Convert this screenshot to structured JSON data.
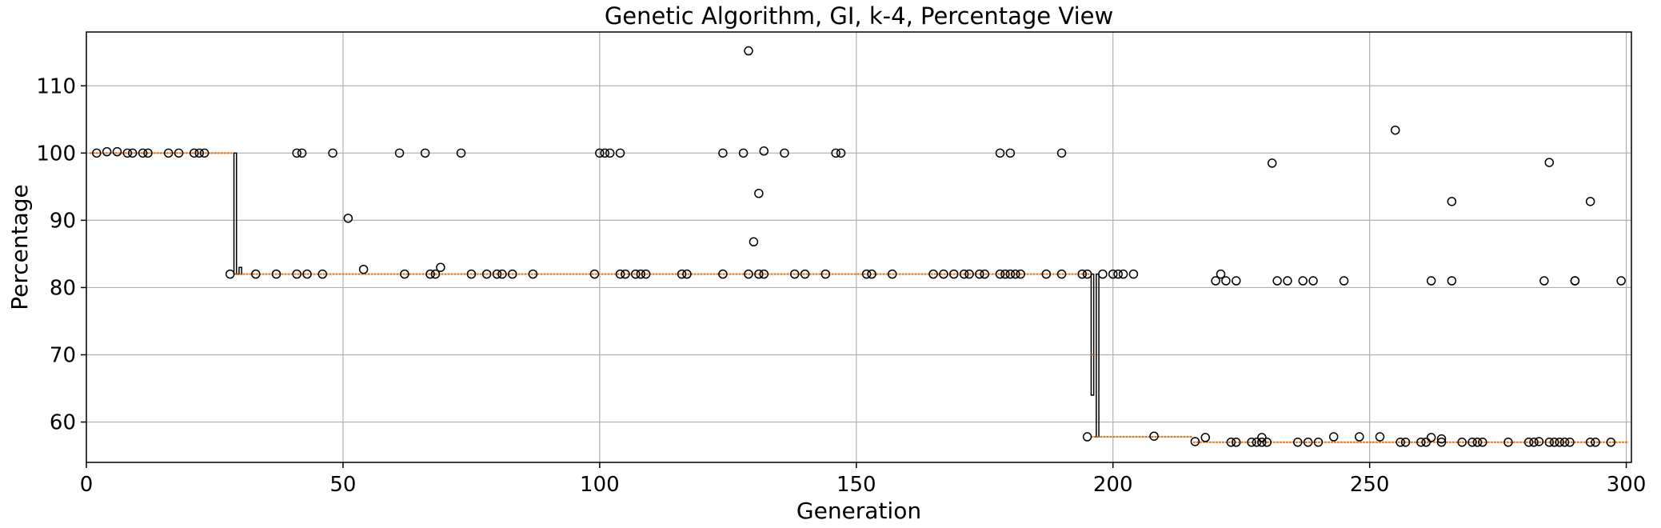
{
  "chart_data": {
    "type": "box",
    "title": "Genetic Algorithm, GI, k-4, Percentage View",
    "xlabel": "Generation",
    "ylabel": "Percentage",
    "xlim": [
      0,
      301
    ],
    "ylim": [
      54,
      118
    ],
    "xticks": [
      0,
      50,
      100,
      150,
      200,
      250,
      300
    ],
    "yticks": [
      60,
      70,
      80,
      90,
      100,
      110
    ],
    "grid": true,
    "colors": {
      "median": "#e0721b",
      "box": "#000000",
      "outlier": "#000000",
      "grid": "#b0b0b0"
    },
    "segments": [
      {
        "from": 1,
        "to": 28,
        "median": 100
      },
      {
        "from": 29,
        "to": 195,
        "median": 82
      },
      {
        "from": 196,
        "to": 215,
        "median": 57.8
      },
      {
        "from": 216,
        "to": 300,
        "median": 57
      }
    ],
    "boxes": [
      {
        "x": 29,
        "q1": 82,
        "q3": 100,
        "median": 82
      },
      {
        "x": 30,
        "q1": 82,
        "q3": 83,
        "median": 82
      },
      {
        "x": 196,
        "q1": 64,
        "q3": 82,
        "median": 70
      },
      {
        "x": 197,
        "q1": 57.8,
        "q3": 82,
        "median": 57.8
      }
    ],
    "outliers": [
      [
        2,
        100
      ],
      [
        4,
        100.2
      ],
      [
        6,
        100.2
      ],
      [
        8,
        100
      ],
      [
        9,
        100
      ],
      [
        11,
        100
      ],
      [
        12,
        100
      ],
      [
        16,
        100
      ],
      [
        18,
        100
      ],
      [
        21,
        100
      ],
      [
        22,
        100
      ],
      [
        23,
        100
      ],
      [
        28,
        82
      ],
      [
        33,
        82
      ],
      [
        37,
        82
      ],
      [
        41,
        82
      ],
      [
        41,
        100
      ],
      [
        42,
        100
      ],
      [
        43,
        82
      ],
      [
        46,
        82
      ],
      [
        48,
        100
      ],
      [
        51,
        90.3
      ],
      [
        54,
        82.7
      ],
      [
        61,
        100
      ],
      [
        62,
        82
      ],
      [
        66,
        100
      ],
      [
        67,
        82
      ],
      [
        68,
        82
      ],
      [
        69,
        83
      ],
      [
        73,
        100
      ],
      [
        75,
        82
      ],
      [
        78,
        82
      ],
      [
        80,
        82
      ],
      [
        81,
        82
      ],
      [
        83,
        82
      ],
      [
        87,
        82
      ],
      [
        99,
        82
      ],
      [
        100,
        100
      ],
      [
        101,
        100
      ],
      [
        102,
        100
      ],
      [
        104,
        100
      ],
      [
        104,
        82
      ],
      [
        105,
        82
      ],
      [
        107,
        82
      ],
      [
        108,
        82
      ],
      [
        109,
        82
      ],
      [
        116,
        82
      ],
      [
        117,
        82
      ],
      [
        124,
        82
      ],
      [
        124,
        100
      ],
      [
        128,
        100
      ],
      [
        129,
        115.2
      ],
      [
        129,
        82
      ],
      [
        130,
        86.8
      ],
      [
        131,
        94
      ],
      [
        131,
        82
      ],
      [
        132,
        100.3
      ],
      [
        132,
        82
      ],
      [
        136,
        100
      ],
      [
        138,
        82
      ],
      [
        140,
        82
      ],
      [
        144,
        82
      ],
      [
        146,
        100
      ],
      [
        147,
        100
      ],
      [
        152,
        82
      ],
      [
        153,
        82
      ],
      [
        157,
        82
      ],
      [
        165,
        82
      ],
      [
        167,
        82
      ],
      [
        169,
        82
      ],
      [
        171,
        82
      ],
      [
        172,
        82
      ],
      [
        174,
        82
      ],
      [
        175,
        82
      ],
      [
        178,
        82
      ],
      [
        178,
        100
      ],
      [
        179,
        82
      ],
      [
        180,
        82
      ],
      [
        180,
        100
      ],
      [
        181,
        82
      ],
      [
        182,
        82
      ],
      [
        187,
        82
      ],
      [
        190,
        82
      ],
      [
        190,
        100
      ],
      [
        194,
        82
      ],
      [
        195,
        82
      ],
      [
        195,
        57.8
      ],
      [
        198,
        82
      ],
      [
        200,
        82
      ],
      [
        201,
        82
      ],
      [
        202,
        82
      ],
      [
        204,
        82
      ],
      [
        208,
        57.9
      ],
      [
        216,
        57.1
      ],
      [
        218,
        57.7
      ],
      [
        220,
        81
      ],
      [
        221,
        82
      ],
      [
        222,
        81
      ],
      [
        223,
        57
      ],
      [
        224,
        57
      ],
      [
        224,
        81
      ],
      [
        227,
        57
      ],
      [
        228,
        57
      ],
      [
        229,
        57.7
      ],
      [
        229,
        57
      ],
      [
        230,
        57
      ],
      [
        231,
        98.5
      ],
      [
        232,
        81
      ],
      [
        234,
        81
      ],
      [
        236,
        57
      ],
      [
        237,
        81
      ],
      [
        238,
        57
      ],
      [
        239,
        81
      ],
      [
        240,
        57
      ],
      [
        243,
        57.8
      ],
      [
        245,
        81
      ],
      [
        248,
        57.8
      ],
      [
        252,
        57.8
      ],
      [
        255,
        103.4
      ],
      [
        256,
        57
      ],
      [
        257,
        57
      ],
      [
        260,
        57
      ],
      [
        261,
        57
      ],
      [
        262,
        57.7
      ],
      [
        262,
        81
      ],
      [
        264,
        57.5
      ],
      [
        264,
        57
      ],
      [
        266,
        92.8
      ],
      [
        266,
        81
      ],
      [
        268,
        57
      ],
      [
        270,
        57
      ],
      [
        271,
        57
      ],
      [
        272,
        57
      ],
      [
        277,
        57
      ],
      [
        281,
        57
      ],
      [
        282,
        57
      ],
      [
        283,
        57.1
      ],
      [
        284,
        81
      ],
      [
        285,
        98.6
      ],
      [
        285,
        57
      ],
      [
        286,
        57
      ],
      [
        287,
        57
      ],
      [
        288,
        57
      ],
      [
        289,
        57
      ],
      [
        290,
        81
      ],
      [
        290,
        81
      ],
      [
        293,
        92.8
      ],
      [
        293,
        57
      ],
      [
        294,
        57
      ],
      [
        297,
        57
      ],
      [
        299,
        81
      ]
    ]
  }
}
